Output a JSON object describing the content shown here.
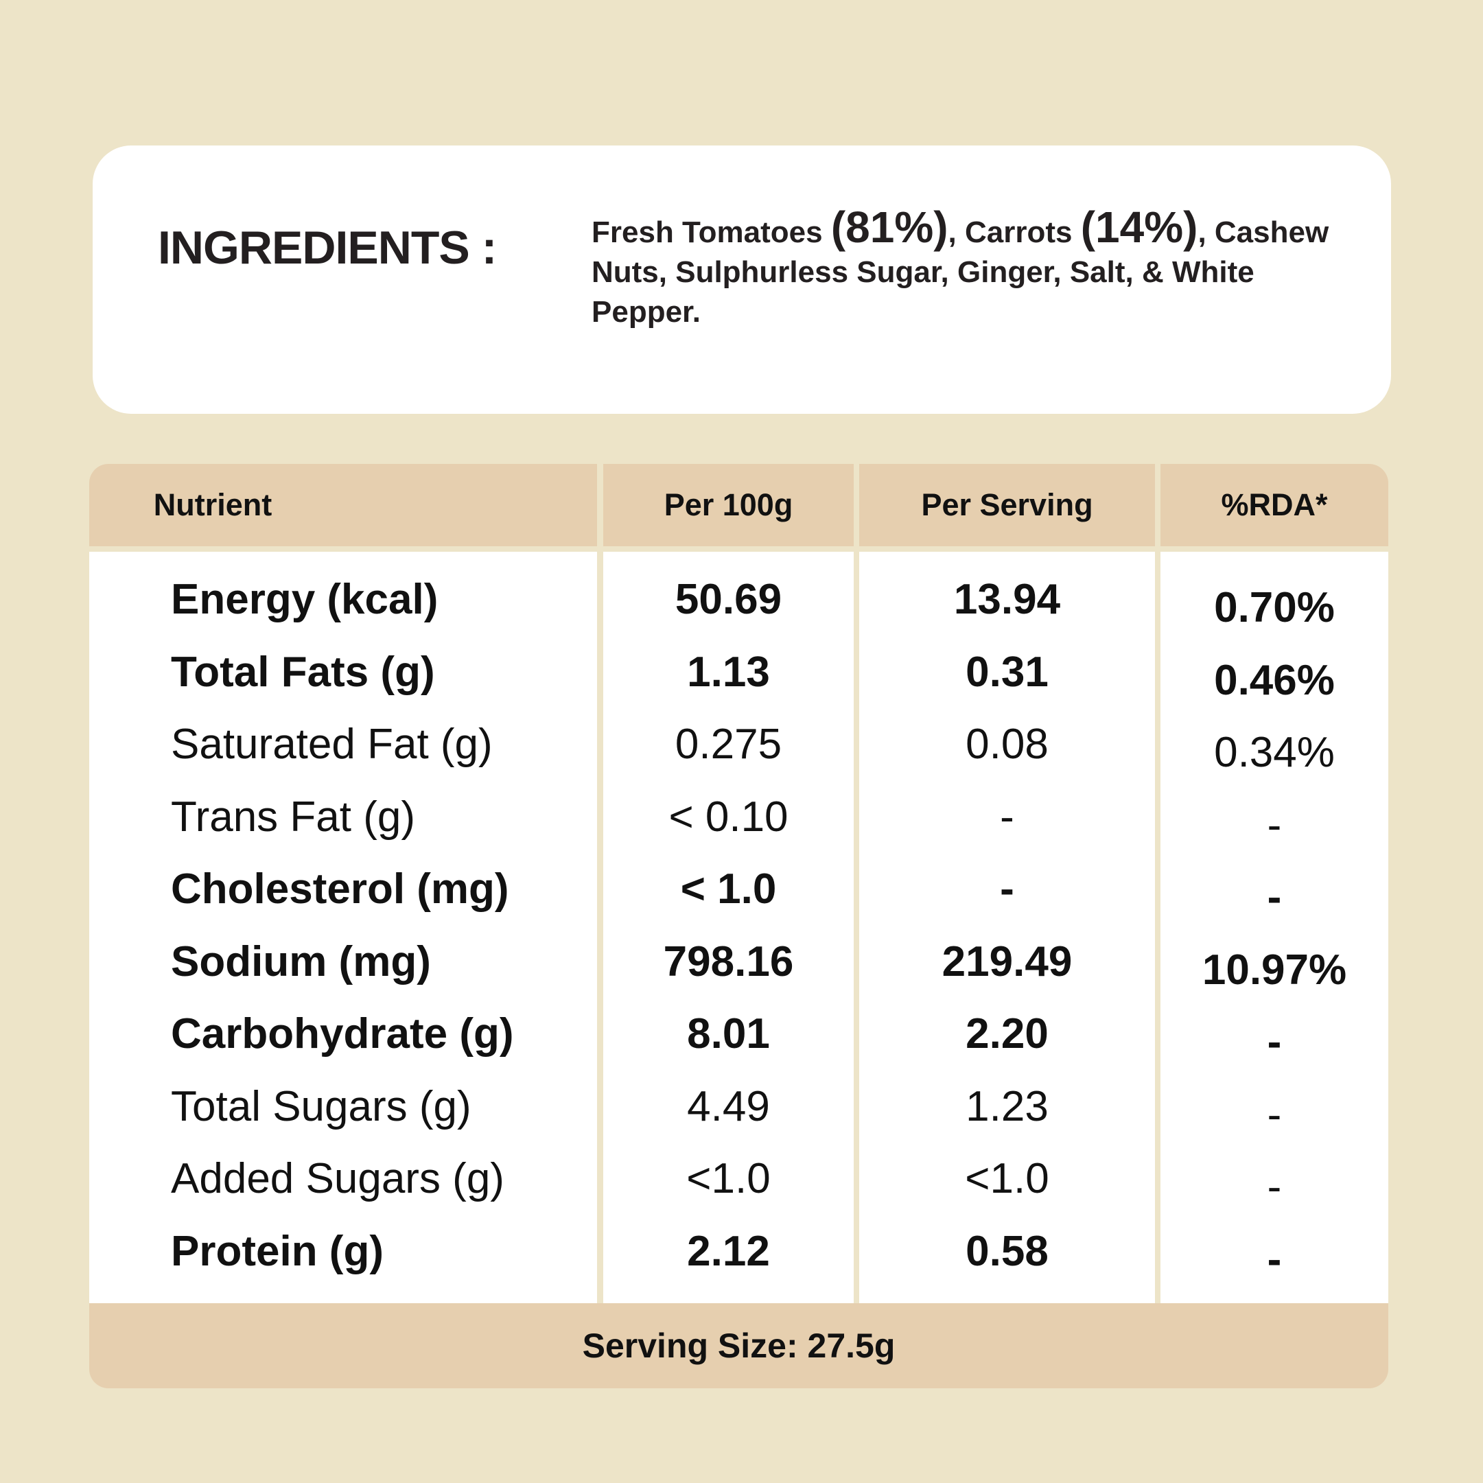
{
  "ingredients": {
    "title": "INGREDIENTS :",
    "parts": [
      "Fresh Tomatoes ",
      "(81%)",
      ", Carrots ",
      "(14%)",
      ", Cashew Nuts, Sulphurless Sugar, Ginger, Salt, & White Pepper."
    ]
  },
  "table": {
    "headers": [
      "Nutrient",
      "Per 100g",
      "Per Serving",
      "%RDA*"
    ],
    "rows": [
      {
        "nutrient": "Energy (kcal)",
        "per100g": "50.69",
        "perServing": "13.94",
        "rda": "0.70%",
        "bold": true
      },
      {
        "nutrient": "Total Fats (g)",
        "per100g": "1.13",
        "perServing": "0.31",
        "rda": "0.46%",
        "bold": true
      },
      {
        "nutrient": "Saturated Fat (g)",
        "per100g": "0.275",
        "perServing": "0.08",
        "rda": "0.34%",
        "bold": false
      },
      {
        "nutrient": "Trans Fat (g)",
        "per100g": "< 0.10",
        "perServing": "-",
        "rda": "-",
        "bold": false
      },
      {
        "nutrient": "Cholesterol (mg)",
        "per100g": "< 1.0",
        "perServing": "-",
        "rda": "-",
        "bold": true
      },
      {
        "nutrient": "Sodium (mg)",
        "per100g": "798.16",
        "perServing": "219.49",
        "rda": "10.97%",
        "bold": true
      },
      {
        "nutrient": "Carbohydrate (g)",
        "per100g": "8.01",
        "perServing": "2.20",
        "rda": "-",
        "bold": true
      },
      {
        "nutrient": "Total Sugars (g)",
        "per100g": "4.49",
        "perServing": "1.23",
        "rda": "-",
        "bold": false
      },
      {
        "nutrient": "Added Sugars (g)",
        "per100g": "<1.0",
        "perServing": "<1.0",
        "rda": "-",
        "bold": false
      },
      {
        "nutrient": "Protein (g)",
        "per100g": "2.12",
        "perServing": "0.58",
        "rda": "-",
        "bold": true
      }
    ],
    "footer": "Serving Size: 27.5g"
  },
  "colors": {
    "background": "#EDE4C8",
    "header": "#E6CFAF",
    "card": "#FFFFFF"
  }
}
